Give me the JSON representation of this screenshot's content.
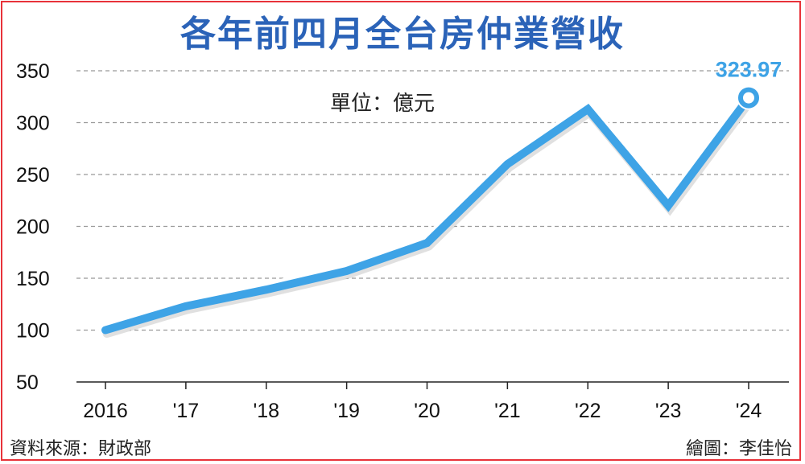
{
  "title": "各年前四月全台房仲業營收",
  "unit_label": "單位：億元",
  "source": "資料來源：財政部",
  "credit": "繪圖：李佳怡",
  "colors": {
    "line": "#3ea3e6",
    "title": "#2b63b8",
    "frame": "#e8333a",
    "grid": "#999999"
  },
  "chart_data": {
    "type": "line",
    "categories": [
      "2016",
      "'17",
      "'18",
      "'19",
      "'20",
      "'21",
      "'22",
      "'23",
      "'24"
    ],
    "series": [
      {
        "values": [
          100,
          123,
          139,
          157,
          184,
          260,
          313,
          220,
          323.97
        ]
      }
    ],
    "yticks": [
      50,
      100,
      150,
      200,
      250,
      300,
      350
    ],
    "ylim": [
      50,
      350
    ],
    "grid": true,
    "annotation": {
      "index": 8,
      "label": "323.97"
    }
  }
}
